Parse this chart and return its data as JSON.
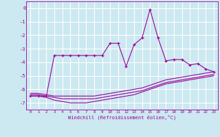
{
  "xlabel": "Windchill (Refroidissement éolien,°C)",
  "bg_color": "#cce8f0",
  "grid_color": "#ffffff",
  "line_color": "#990099",
  "x": [
    0,
    1,
    2,
    3,
    4,
    5,
    6,
    7,
    8,
    9,
    10,
    11,
    12,
    13,
    14,
    15,
    16,
    17,
    18,
    19,
    20,
    21,
    22,
    23
  ],
  "line1": [
    -6.3,
    -6.3,
    -6.4,
    -6.5,
    -6.5,
    -6.5,
    -6.5,
    -6.5,
    -6.5,
    -6.4,
    -6.3,
    -6.2,
    -6.1,
    -6.0,
    -5.9,
    -5.7,
    -5.5,
    -5.3,
    -5.2,
    -5.1,
    -5.0,
    -4.9,
    -4.8,
    -4.7
  ],
  "line2": [
    -6.5,
    -6.5,
    -6.6,
    -6.8,
    -6.9,
    -7.0,
    -7.0,
    -7.0,
    -6.9,
    -6.8,
    -6.7,
    -6.6,
    -6.5,
    -6.4,
    -6.2,
    -6.0,
    -5.8,
    -5.6,
    -5.5,
    -5.4,
    -5.3,
    -5.2,
    -5.1,
    -5.0
  ],
  "line3": [
    -6.4,
    -6.4,
    -6.5,
    -6.6,
    -6.7,
    -6.7,
    -6.7,
    -6.7,
    -6.7,
    -6.6,
    -6.5,
    -6.4,
    -6.3,
    -6.2,
    -6.1,
    -5.9,
    -5.7,
    -5.5,
    -5.4,
    -5.3,
    -5.2,
    -5.1,
    -5.0,
    -4.9
  ],
  "line4": [
    -6.5,
    -6.5,
    -6.5,
    -3.5,
    -3.5,
    -3.5,
    -3.5,
    -3.5,
    -3.5,
    -3.5,
    -2.6,
    -2.6,
    -4.3,
    -2.7,
    -2.2,
    -0.1,
    -2.2,
    -3.9,
    -3.8,
    -3.8,
    -4.2,
    -4.1,
    -4.5,
    -4.7
  ],
  "ylim": [
    -7.5,
    0.5
  ],
  "xlim": [
    -0.5,
    23.5
  ],
  "yticks": [
    0,
    -1,
    -2,
    -3,
    -4,
    -5,
    -6,
    -7
  ],
  "xticks": [
    0,
    1,
    2,
    3,
    4,
    5,
    6,
    7,
    8,
    9,
    10,
    11,
    12,
    13,
    14,
    15,
    16,
    17,
    18,
    19,
    20,
    21,
    22,
    23
  ]
}
